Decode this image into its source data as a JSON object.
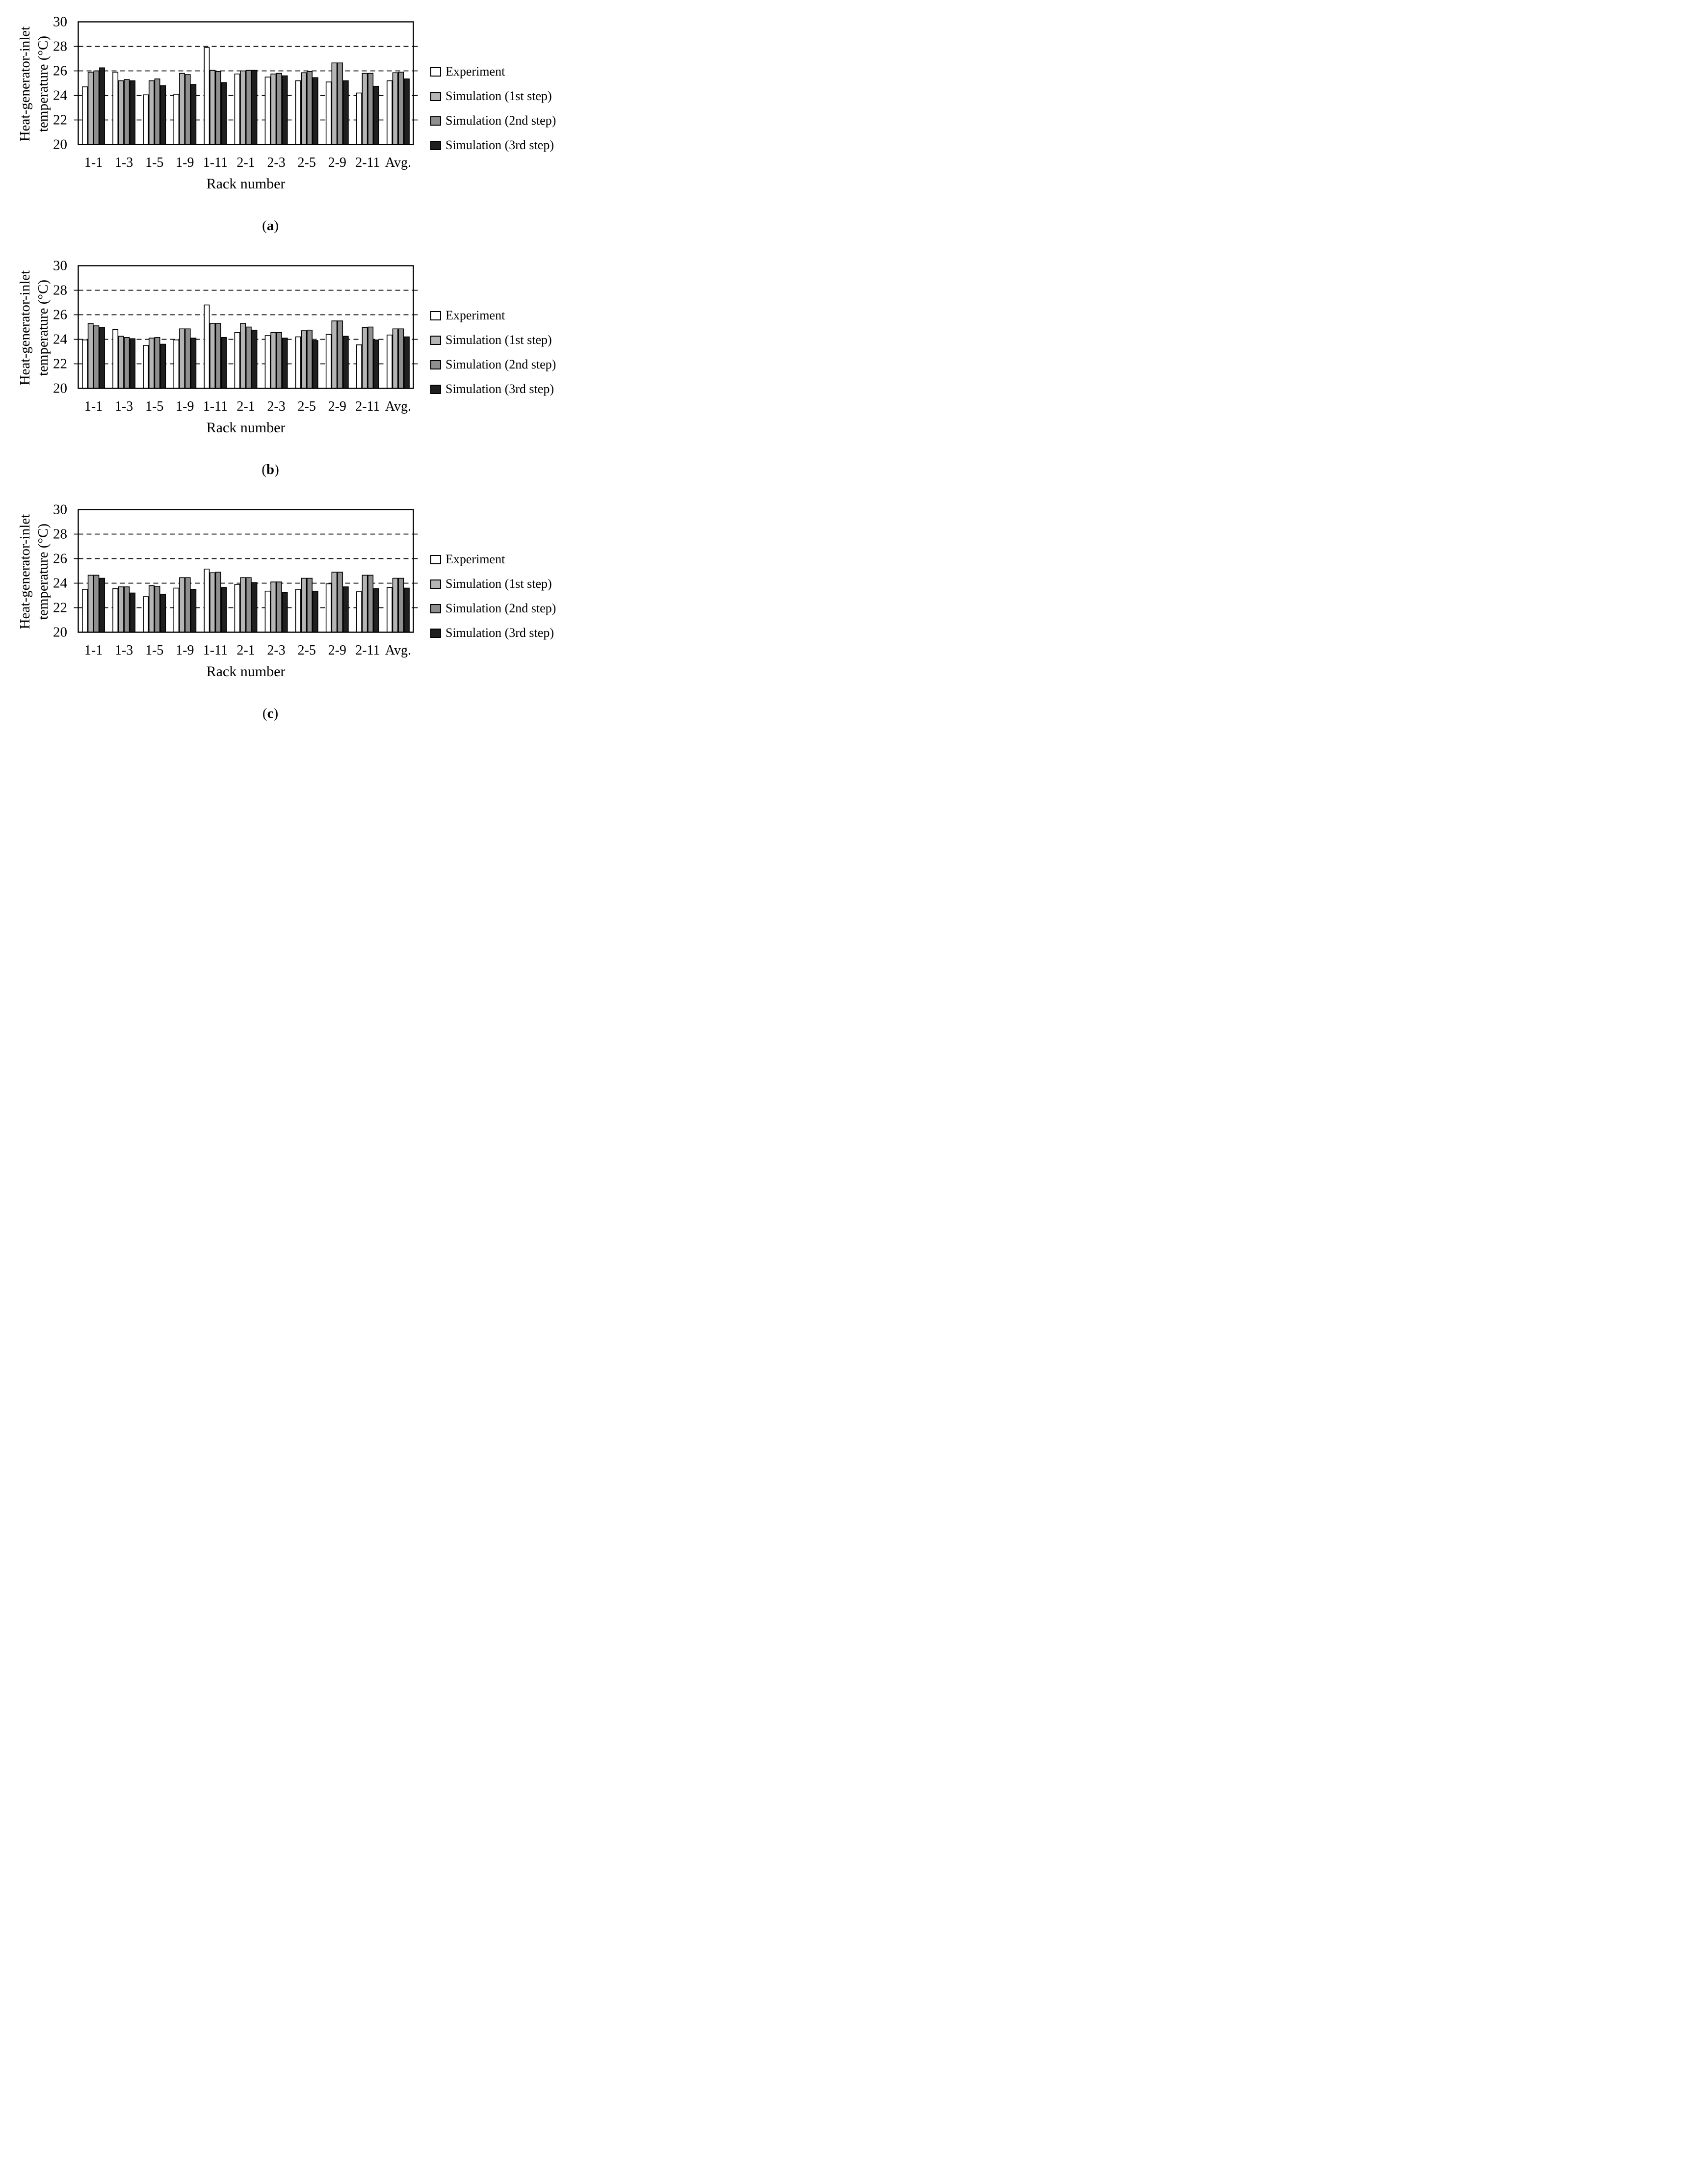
{
  "figure": {
    "ylabel_line1": "Heat-generator-inlet",
    "ylabel_line2": "temperature (°C)",
    "xlabel": "Rack number",
    "background": "#ffffff",
    "axis_color": "#000000"
  },
  "legend": {
    "position": "right",
    "items": [
      {
        "label": "Experiment",
        "color": "#ffffff"
      },
      {
        "label": "Simulation (1st step)",
        "color": "#b5b5b5"
      },
      {
        "label": "Simulation (2nd step)",
        "color": "#8f8f8f"
      },
      {
        "label": "Simulation (3rd step)",
        "color": "#1f1f1f"
      }
    ]
  },
  "chart_data": [
    {
      "type": "bar",
      "panel": "a",
      "caption": {
        "open": "(",
        "letter": "a",
        "close": ")"
      },
      "title": "",
      "xlabel": "Rack number",
      "ylabel": [
        "Heat-generator-inlet",
        "temperature (°C)"
      ],
      "ylim": [
        20,
        30
      ],
      "yticks": [
        30,
        28,
        26,
        24,
        22,
        20
      ],
      "gridlines": [
        28,
        26,
        24,
        22
      ],
      "grid": "dashed",
      "legend_position": "right",
      "categories": [
        "1-1",
        "1-3",
        "1-5",
        "1-9",
        "1-11",
        "2-1",
        "2-3",
        "2-5",
        "2-9",
        "2-11",
        "Avg."
      ],
      "series": [
        {
          "name": "Experiment",
          "color": "#ffffff",
          "values": [
            24.7,
            25.9,
            24.05,
            24.1,
            27.9,
            25.75,
            25.5,
            25.2,
            25.1,
            24.2,
            25.2
          ]
        },
        {
          "name": "Simulation (1st step)",
          "color": "#b5b5b5",
          "values": [
            25.9,
            25.2,
            25.2,
            25.8,
            26.05,
            26.0,
            25.75,
            25.85,
            26.65,
            25.8,
            25.85
          ]
        },
        {
          "name": "Simulation (2nd step)",
          "color": "#8f8f8f",
          "values": [
            26.0,
            25.3,
            25.35,
            25.7,
            25.95,
            26.05,
            25.8,
            25.95,
            26.65,
            25.8,
            25.9
          ]
        },
        {
          "name": "Simulation (3rd step)",
          "color": "#1f1f1f",
          "values": [
            26.25,
            25.2,
            24.8,
            24.9,
            25.05,
            26.05,
            25.6,
            25.45,
            25.2,
            24.75,
            25.35
          ]
        }
      ]
    },
    {
      "type": "bar",
      "panel": "b",
      "caption": {
        "open": "(",
        "letter": "b",
        "close": ")"
      },
      "title": "",
      "xlabel": "Rack number",
      "ylabel": [
        "Heat-generator-inlet",
        "temperature (°C)"
      ],
      "ylim": [
        20,
        30
      ],
      "yticks": [
        30,
        28,
        26,
        24,
        22,
        20
      ],
      "gridlines": [
        28,
        26,
        24,
        22
      ],
      "grid": "dashed",
      "legend_position": "right",
      "categories": [
        "1-1",
        "1-3",
        "1-5",
        "1-9",
        "1-11",
        "2-1",
        "2-3",
        "2-5",
        "2-9",
        "2-11",
        "Avg."
      ],
      "series": [
        {
          "name": "Experiment",
          "color": "#ffffff",
          "values": [
            23.95,
            24.8,
            23.5,
            23.95,
            26.8,
            24.55,
            24.3,
            24.2,
            24.4,
            23.55,
            24.35
          ]
        },
        {
          "name": "Simulation (1st step)",
          "color": "#b5b5b5",
          "values": [
            25.3,
            24.25,
            24.1,
            24.85,
            25.3,
            25.3,
            24.55,
            24.7,
            25.5,
            24.95,
            24.85
          ]
        },
        {
          "name": "Simulation (2nd step)",
          "color": "#8f8f8f",
          "values": [
            25.1,
            24.15,
            24.15,
            24.85,
            25.3,
            25.0,
            24.55,
            24.75,
            25.5,
            25.0,
            24.85
          ]
        },
        {
          "name": "Simulation (3rd step)",
          "color": "#1f1f1f",
          "values": [
            24.95,
            24.05,
            23.6,
            24.1,
            24.15,
            24.75,
            24.1,
            23.9,
            24.25,
            23.95,
            24.2
          ]
        }
      ]
    },
    {
      "type": "bar",
      "panel": "c",
      "caption": {
        "open": "(",
        "letter": "c",
        "close": ")"
      },
      "title": "",
      "xlabel": "Rack number",
      "ylabel": [
        "Heat-generator-inlet",
        "temperature (°C)"
      ],
      "ylim": [
        20,
        30
      ],
      "yticks": [
        30,
        28,
        26,
        24,
        22,
        20
      ],
      "gridlines": [
        28,
        26,
        24,
        22
      ],
      "grid": "dashed",
      "legend_position": "right",
      "categories": [
        "1-1",
        "1-3",
        "1-5",
        "1-9",
        "1-11",
        "2-1",
        "2-3",
        "2-5",
        "2-9",
        "2-11",
        "Avg."
      ],
      "series": [
        {
          "name": "Experiment",
          "color": "#ffffff",
          "values": [
            23.5,
            23.55,
            22.9,
            23.6,
            25.15,
            23.9,
            23.35,
            23.5,
            23.95,
            23.3,
            23.65
          ]
        },
        {
          "name": "Simulation (1st step)",
          "color": "#b5b5b5",
          "values": [
            24.65,
            23.7,
            23.8,
            24.45,
            24.85,
            24.45,
            24.1,
            24.4,
            24.9,
            24.65,
            24.4
          ]
        },
        {
          "name": "Simulation (2nd step)",
          "color": "#8f8f8f",
          "values": [
            24.65,
            23.7,
            23.75,
            24.45,
            24.9,
            24.45,
            24.1,
            24.4,
            24.9,
            24.65,
            24.4
          ]
        },
        {
          "name": "Simulation (3rd step)",
          "color": "#1f1f1f",
          "values": [
            24.4,
            23.2,
            23.1,
            23.5,
            23.65,
            24.05,
            23.25,
            23.35,
            23.7,
            23.55,
            23.6
          ]
        }
      ]
    }
  ]
}
